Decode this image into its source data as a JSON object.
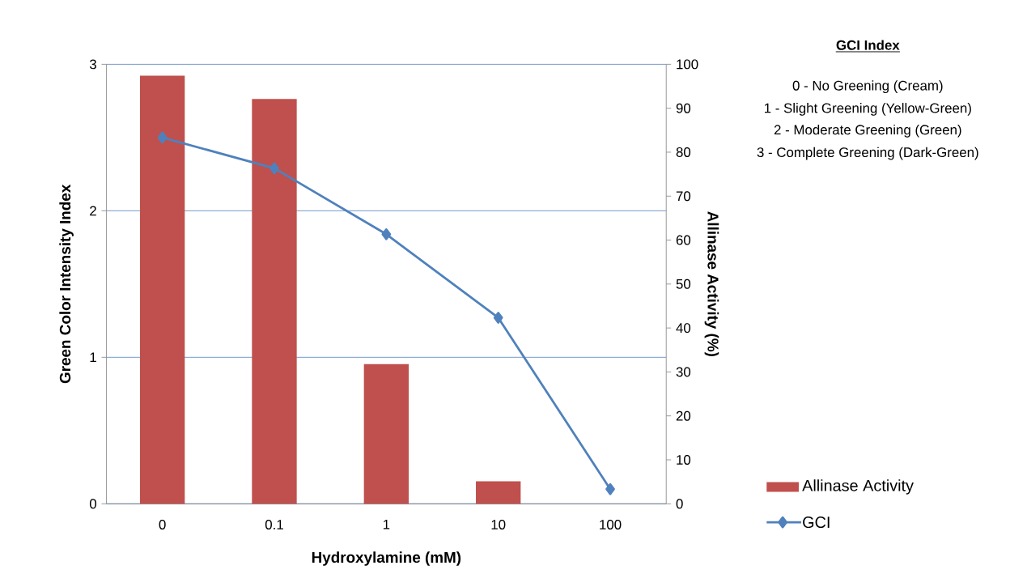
{
  "chart_data": {
    "type": "bar",
    "xlabel": "Hydroxylamine (mM)",
    "ylabel": "Green Color Intensity Index",
    "y2label": "Allinase Activity (%)",
    "categories": [
      "0",
      "0.1",
      "1",
      "10",
      "100"
    ],
    "series": [
      {
        "name": "Allinase Activity",
        "axis": "y2",
        "color": "#c0504d",
        "values": [
          97.4,
          92.1,
          31.8,
          5.1,
          null
        ]
      },
      {
        "name": "GCI",
        "type": "line",
        "color": "#4f81bd",
        "values": [
          2.5,
          2.29,
          1.84,
          1.27,
          0.1
        ]
      }
    ],
    "ylim": [
      0,
      3
    ],
    "yticks": [
      0,
      1,
      2,
      3
    ],
    "y2lim": [
      0,
      100
    ],
    "y2ticks": [
      0,
      10,
      20,
      30,
      40,
      50,
      60,
      70,
      80,
      90,
      100
    ],
    "grid": "y",
    "legend": "right",
    "marker": "diamond",
    "annotations": [
      "GCI Index",
      "0 - No Greening (Cream)",
      "1 - Slight Greening (Yellow-Green)",
      "2 - Moderate Greening (Green)",
      "3 - Complete Greening (Dark-Green)"
    ]
  }
}
